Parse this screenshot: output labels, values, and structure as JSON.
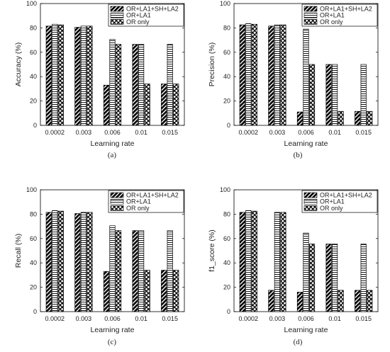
{
  "chart_data": [
    {
      "type": "bar",
      "caption": "(a)",
      "xlabel": "Learning rate",
      "ylabel": "Accuracy (%)",
      "ylim": [
        0,
        100
      ],
      "yticks": [
        0,
        20,
        40,
        60,
        80,
        100
      ],
      "categories": [
        "0.0002",
        "0.003",
        "0.006",
        "0.01",
        "0.015"
      ],
      "legend_position": "top-right",
      "series": [
        {
          "name": "OR+LA1+SH+LA2",
          "pattern": "diagonal",
          "values": [
            81.5,
            80.5,
            33,
            66.5,
            34
          ]
        },
        {
          "name": "OR+LA1",
          "pattern": "horizontal",
          "values": [
            83,
            81.5,
            70.5,
            66.5,
            66.5
          ]
        },
        {
          "name": "OR only",
          "pattern": "crosshatch",
          "values": [
            82.5,
            81.5,
            66.5,
            34,
            34
          ]
        }
      ]
    },
    {
      "type": "bar",
      "caption": "(b)",
      "xlabel": "Learning rate",
      "ylabel": "Precision (%)",
      "ylim": [
        0,
        100
      ],
      "yticks": [
        0,
        20,
        40,
        60,
        80,
        100
      ],
      "categories": [
        "0.0002",
        "0.003",
        "0.006",
        "0.01",
        "0.015"
      ],
      "legend_position": "top-right",
      "series": [
        {
          "name": "OR+LA1+SH+LA2",
          "pattern": "diagonal",
          "values": [
            82.5,
            81.5,
            11,
            50,
            11.5
          ]
        },
        {
          "name": "OR+LA1",
          "pattern": "horizontal",
          "values": [
            83.5,
            82.5,
            79,
            50,
            50
          ]
        },
        {
          "name": "OR only",
          "pattern": "crosshatch",
          "values": [
            83,
            82.5,
            50,
            11.5,
            11.5
          ]
        }
      ]
    },
    {
      "type": "bar",
      "caption": "(c)",
      "xlabel": "Learning rate",
      "ylabel": "Recall (%)",
      "ylim": [
        0,
        100
      ],
      "yticks": [
        0,
        20,
        40,
        60,
        80,
        100
      ],
      "categories": [
        "0.0002",
        "0.003",
        "0.006",
        "0.01",
        "0.015"
      ],
      "legend_position": "top-right",
      "series": [
        {
          "name": "OR+LA1+SH+LA2",
          "pattern": "diagonal",
          "values": [
            81.5,
            80.5,
            33,
            66.5,
            34
          ]
        },
        {
          "name": "OR+LA1",
          "pattern": "horizontal",
          "values": [
            83,
            81.5,
            70.5,
            66.5,
            66.5
          ]
        },
        {
          "name": "OR only",
          "pattern": "crosshatch",
          "values": [
            82.5,
            81.5,
            66.5,
            34,
            34
          ]
        }
      ]
    },
    {
      "type": "bar",
      "caption": "(d)",
      "xlabel": "Learning rate",
      "ylabel": "f1_score (%)",
      "ylim": [
        0,
        100
      ],
      "yticks": [
        0,
        20,
        40,
        60,
        80,
        100
      ],
      "categories": [
        "0.0002",
        "0.003",
        "0.006",
        "0.01",
        "0.015"
      ],
      "legend_position": "top-right",
      "series": [
        {
          "name": "OR+LA1+SH+LA2",
          "pattern": "diagonal",
          "values": [
            81.5,
            17.5,
            16,
            55.5,
            17.5
          ]
        },
        {
          "name": "OR+LA1",
          "pattern": "horizontal",
          "values": [
            83,
            81.5,
            64.5,
            55.5,
            55.5
          ]
        },
        {
          "name": "OR only",
          "pattern": "crosshatch",
          "values": [
            82.5,
            81.5,
            55.5,
            17.5,
            17.5
          ]
        }
      ]
    }
  ]
}
